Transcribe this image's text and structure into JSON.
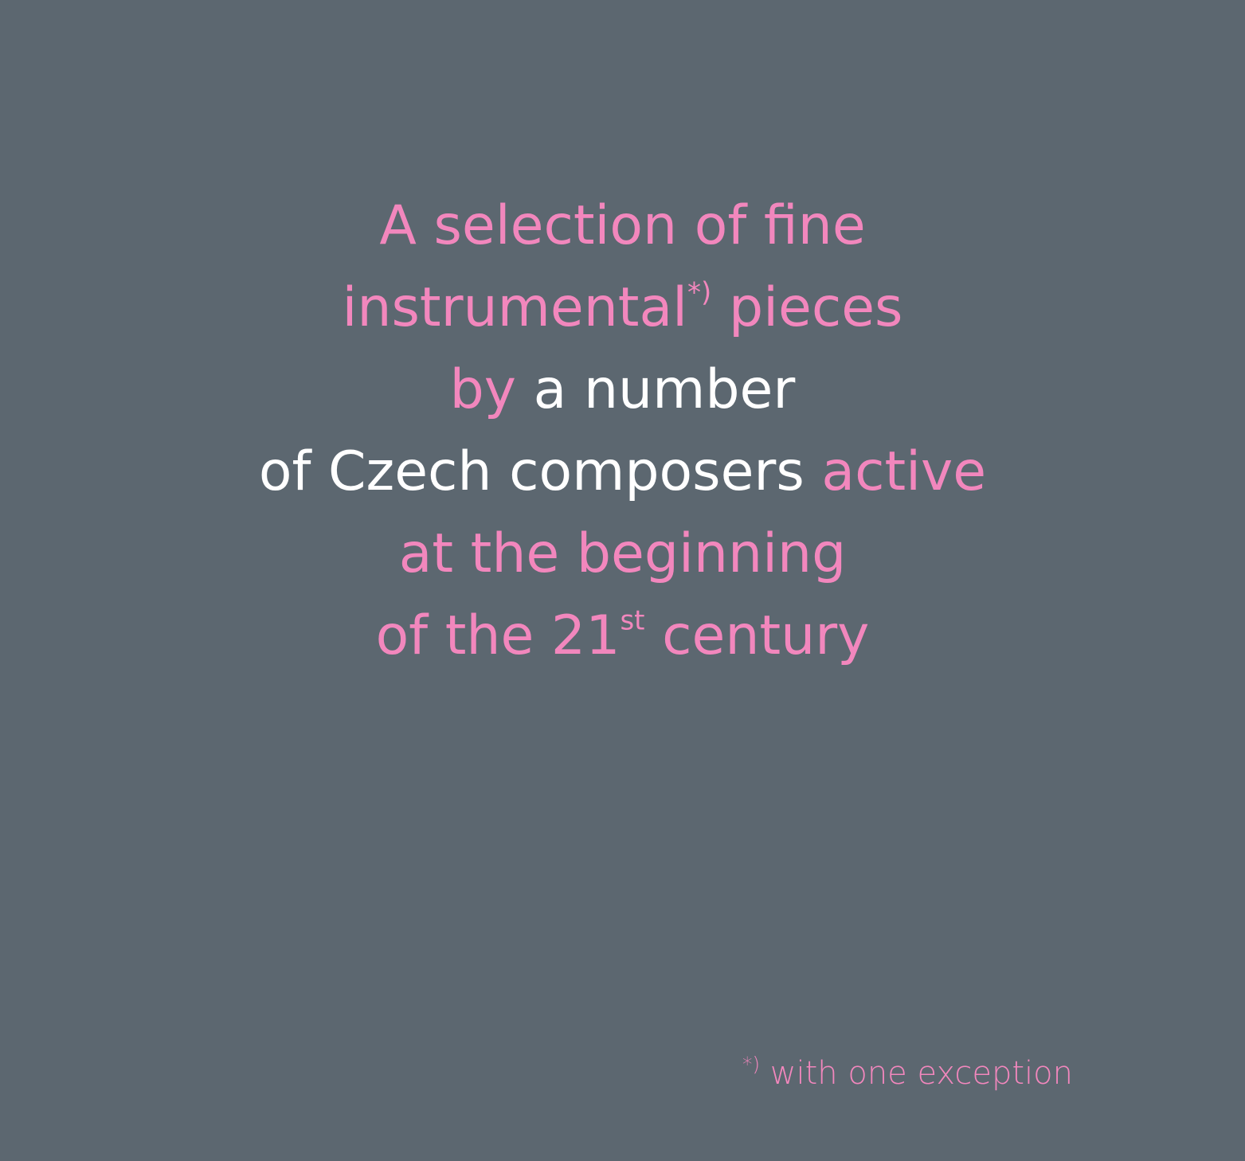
{
  "colors": {
    "background": "#5c6770",
    "accent_pink": "#f287bd",
    "text_white": "#ffffff"
  },
  "main": {
    "line1": "A selection of fine",
    "line2_word": "instrumental",
    "line2_mark": "*)",
    "line2_rest": "pieces",
    "line3_pink": "by",
    "line3_white": "a number",
    "line4_white": "of Czech composers",
    "line4_pink": "active",
    "line5": "at the beginning",
    "line6_start": "of the 21",
    "line6_sup": "st",
    "line6_end": "century"
  },
  "footnote": {
    "mark": "*)",
    "text": "with one exception"
  }
}
